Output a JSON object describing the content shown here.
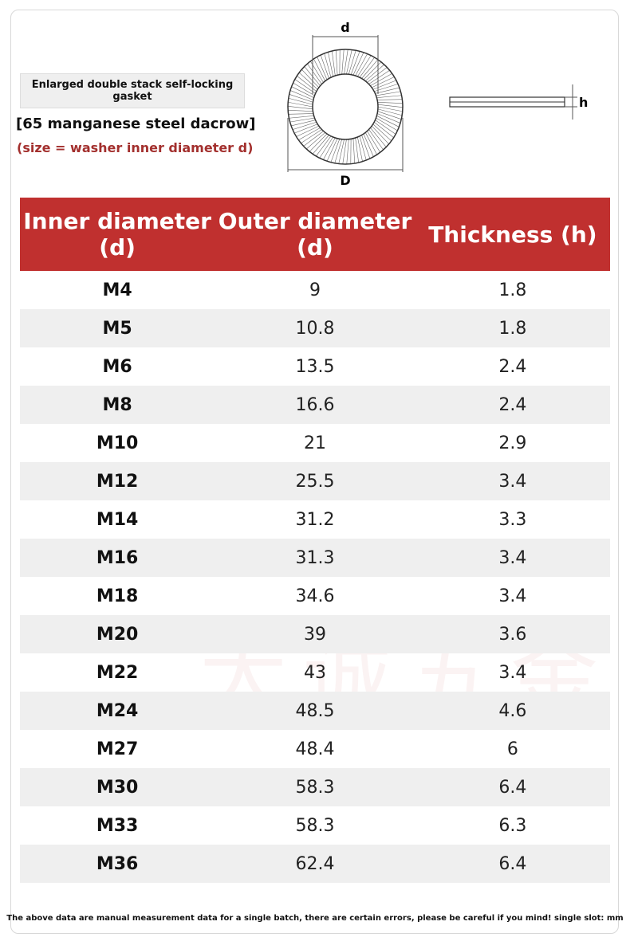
{
  "header": {
    "label": "Enlarged double stack self-locking gasket",
    "material": "[65 manganese steel dacrow]",
    "size_note": "(size = washer inner diameter d)"
  },
  "diagram": {
    "inner_label": "d",
    "outer_label": "D",
    "thickness_label": "h"
  },
  "watermark": "大诚五金",
  "table": {
    "headers": [
      "Inner diameter (d)",
      "Outer diameter (d)",
      "Thickness (h)"
    ],
    "rows": [
      [
        "M4",
        "9",
        "1.8"
      ],
      [
        "M5",
        "10.8",
        "1.8"
      ],
      [
        "M6",
        "13.5",
        "2.4"
      ],
      [
        "M8",
        "16.6",
        "2.4"
      ],
      [
        "M10",
        "21",
        "2.9"
      ],
      [
        "M12",
        "25.5",
        "3.4"
      ],
      [
        "M14",
        "31.2",
        "3.3"
      ],
      [
        "M16",
        "31.3",
        "3.4"
      ],
      [
        "M18",
        "34.6",
        "3.4"
      ],
      [
        "M20",
        "39",
        "3.6"
      ],
      [
        "M22",
        "43",
        "3.4"
      ],
      [
        "M24",
        "48.5",
        "4.6"
      ],
      [
        "M27",
        "48.4",
        "6"
      ],
      [
        "M30",
        "58.3",
        "6.4"
      ],
      [
        "M33",
        "58.3",
        "6.3"
      ],
      [
        "M36",
        "62.4",
        "6.4"
      ]
    ]
  },
  "footer": "The above data are manual measurement data for a single batch, there are certain errors, please be careful if you mind! single slot: mm"
}
